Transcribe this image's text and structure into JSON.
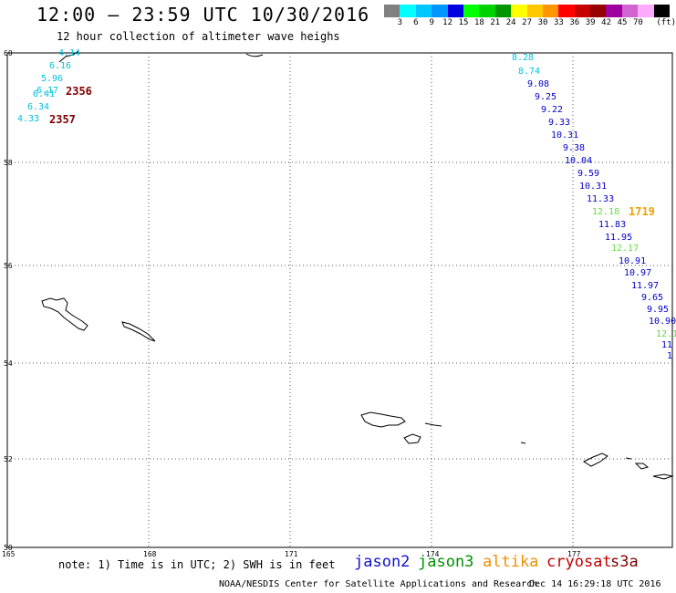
{
  "header": {
    "title": "12:00 – 23:59 UTC 10/30/2016",
    "subtitle": "12 hour collection of altimeter wave heighs"
  },
  "legend": {
    "unit": "(ft)",
    "items": [
      {
        "label": "",
        "color": "#808080"
      },
      {
        "label": "3",
        "color": "#00ffff"
      },
      {
        "label": "6",
        "color": "#00c8ff"
      },
      {
        "label": "9",
        "color": "#0096ff"
      },
      {
        "label": "12",
        "color": "#0000e0"
      },
      {
        "label": "15",
        "color": "#00ff00"
      },
      {
        "label": "18",
        "color": "#00d200"
      },
      {
        "label": "21",
        "color": "#009600"
      },
      {
        "label": "24",
        "color": "#ffff00"
      },
      {
        "label": "27",
        "color": "#ffc800"
      },
      {
        "label": "30",
        "color": "#ff9600"
      },
      {
        "label": "33",
        "color": "#ff0000"
      },
      {
        "label": "36",
        "color": "#c80000"
      },
      {
        "label": "39",
        "color": "#960000"
      },
      {
        "label": "42",
        "color": "#a000a0"
      },
      {
        "label": "45",
        "color": "#d264d2"
      },
      {
        "label": "70",
        "color": "#ffaaff"
      },
      {
        "label": "",
        "color": "#000000"
      }
    ]
  },
  "map": {
    "lon_ticks": [
      "165",
      "168",
      "171",
      "174",
      "177"
    ],
    "lat_ticks": [
      "60",
      "58",
      "56",
      "54",
      "52",
      "50"
    ]
  },
  "track_west": {
    "values": [
      "4.14",
      "6.16",
      "5.96",
      "6.17",
      "6.41",
      "6.34",
      "4.33"
    ],
    "times": [
      "2356",
      "2357"
    ]
  },
  "track_east": {
    "values": [
      "8.28",
      "8.74",
      "9.08",
      "9.25",
      "9.22",
      "9.33",
      "10.31",
      "9.38",
      "10.04",
      "9.59",
      "10.31",
      "11.33",
      "12.18",
      "11.83",
      "11.95",
      "12.17",
      "10.91",
      "10.97",
      "11.97",
      "9.65",
      "9.95",
      "10.90",
      "12.1",
      "11",
      "1"
    ],
    "time": "1719"
  },
  "colors": {
    "cyan": "#00c0e0",
    "blue": "#0000c8",
    "green": "#60e040",
    "time_red": "#800000",
    "time_orange": "#f0a000"
  },
  "footer": {
    "note": "note: 1) Time is in UTC; 2) SWH is in feet",
    "satellites": [
      {
        "name": "jason2",
        "color": "#1010d0"
      },
      {
        "name": "jason3",
        "color": "#009000"
      },
      {
        "name": "altika",
        "color": "#f09000"
      },
      {
        "name": "cryosat",
        "color": "#c00000"
      },
      {
        "name": "s3a",
        "color": "#800000"
      }
    ],
    "credit": "NOAA/NESDIS Center for Satellite Applications and Research",
    "timestamp": "Dec 14 16:29:18 UTC 2016"
  }
}
